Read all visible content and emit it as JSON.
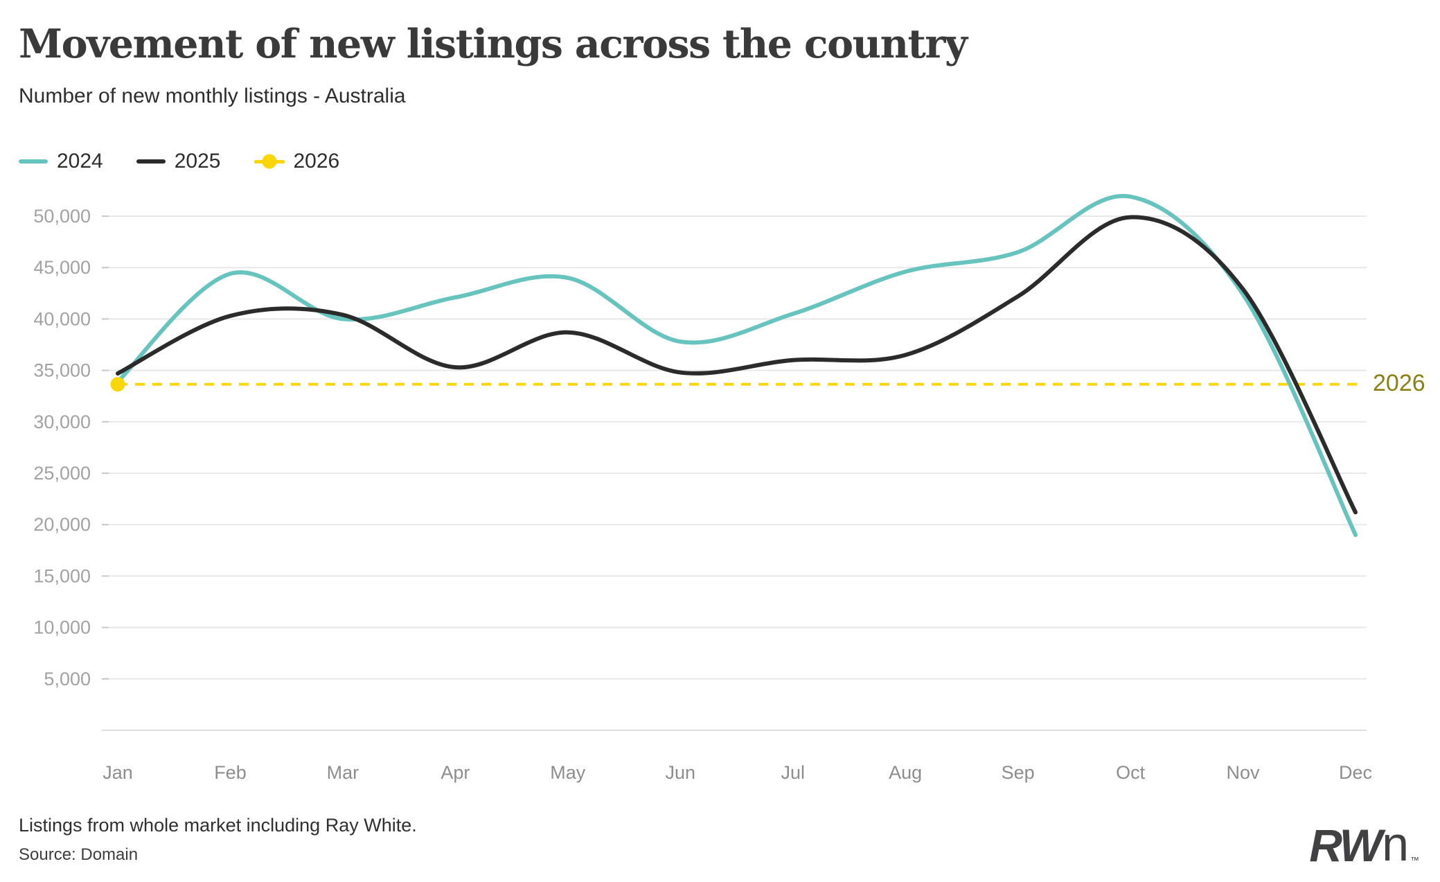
{
  "header": {
    "title": "Movement of new listings across the country",
    "subtitle": "Number of new monthly listings - Australia"
  },
  "chart_data": {
    "type": "line",
    "title": "Movement of new listings across the country",
    "subtitle": "Number of new monthly listings - Australia",
    "categories": [
      "Jan",
      "Feb",
      "Mar",
      "Apr",
      "May",
      "Jun",
      "Jul",
      "Aug",
      "Sep",
      "Oct",
      "Nov",
      "Dec"
    ],
    "series": [
      {
        "name": "2024",
        "color": "#66c3bd",
        "style": "solid",
        "values": [
          33900,
          44400,
          40000,
          42100,
          44000,
          37800,
          40500,
          44600,
          46500,
          51900,
          42400,
          19000
        ]
      },
      {
        "name": "2025",
        "color": "#2b2b2b",
        "style": "solid",
        "values": [
          34700,
          40300,
          40400,
          35300,
          38700,
          34800,
          36000,
          36500,
          42200,
          49900,
          42900,
          21200
        ]
      },
      {
        "name": "2026",
        "color": "#f9d606",
        "style": "dashed-reference-with-dot",
        "values": [
          33650
        ],
        "marker_month": "Jan",
        "marker_value": 33650
      }
    ],
    "annotation_label": "2026",
    "annotation_color": "#8e7f15",
    "yticks": [
      5000,
      10000,
      15000,
      20000,
      25000,
      30000,
      35000,
      40000,
      45000,
      50000
    ],
    "ylim": [
      0,
      52500
    ],
    "grid": "horizontal",
    "legend_position": "top-left"
  },
  "legend": {
    "items": [
      {
        "label": "2024",
        "color": "#66c3bd",
        "swatch": "line"
      },
      {
        "label": "2025",
        "color": "#2b2b2b",
        "swatch": "line"
      },
      {
        "label": "2026",
        "color": "#f9d606",
        "swatch": "dot-line"
      }
    ]
  },
  "footer": {
    "note": "Listings from whole market including Ray White.",
    "source": "Source: Domain"
  },
  "logo": {
    "rw": "RW",
    "n": "n",
    "tm": "™"
  },
  "colors": {
    "background": "#ffffff",
    "title_text": "#3a3a3a",
    "subtitle_text": "#2d2d2d",
    "gridline": "#e8e8e8",
    "axis_baseline": "#e0e0e0",
    "tick": "#c9c9c9",
    "y_label": "#a2a2a2",
    "x_label": "#8d8d8d",
    "series_2024": "#66c3bd",
    "series_2025": "#2b2b2b",
    "series_2026": "#f9d606",
    "annotation_2026": "#8e7f15",
    "logo_text": "#414042"
  }
}
